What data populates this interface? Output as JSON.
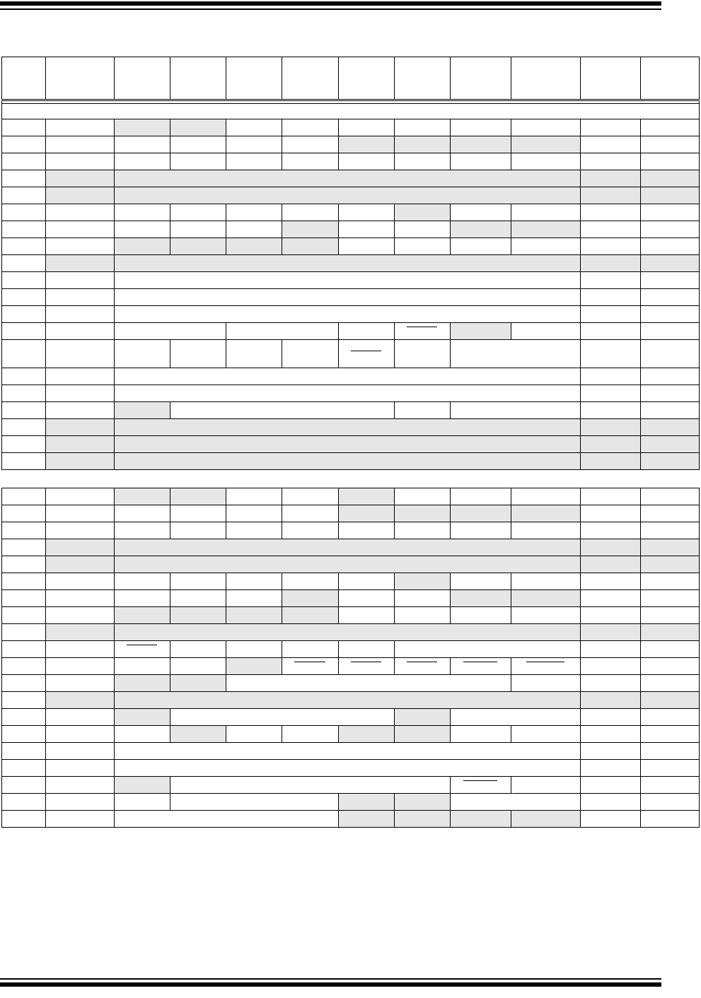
{
  "colors": {
    "shaded_cell": "#e6e6e6",
    "border": "#000000"
  }
}
